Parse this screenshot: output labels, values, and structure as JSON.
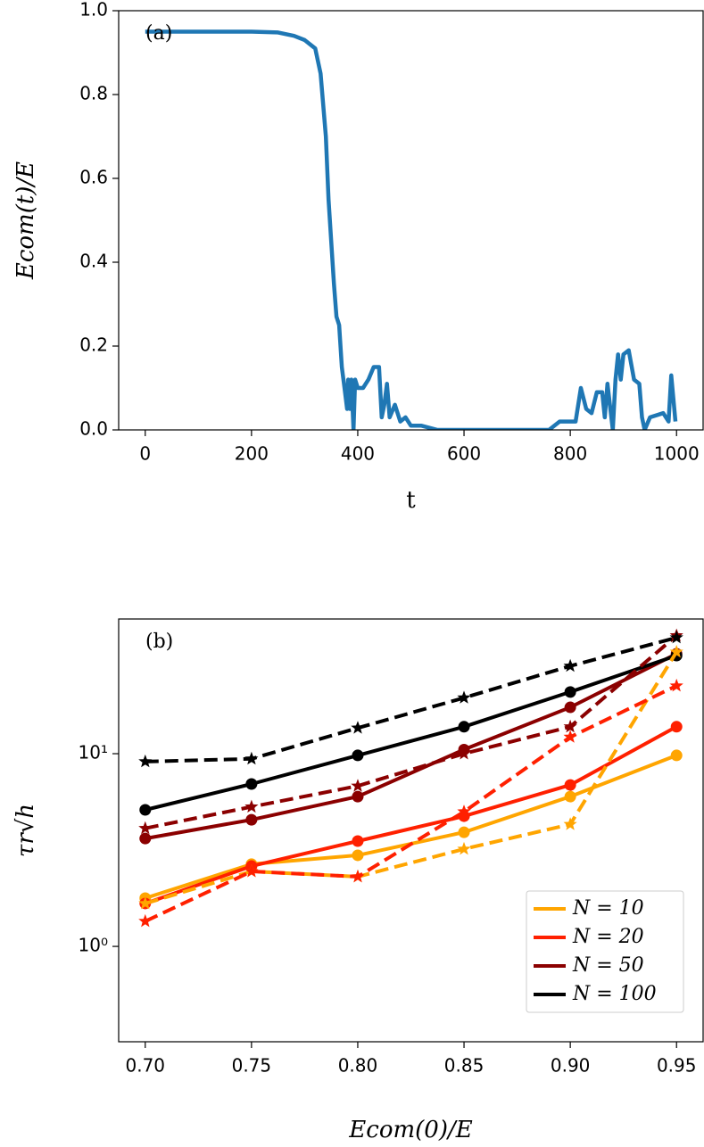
{
  "chart_data": [
    {
      "type": "line",
      "annotation": "(a)",
      "xlabel": "t",
      "ylabel": "Ecom(t)/E",
      "x": [
        0,
        100,
        200,
        250,
        280,
        300,
        320,
        330,
        340,
        345,
        350,
        355,
        360,
        365,
        370,
        375,
        380,
        382,
        385,
        388,
        392,
        395,
        400,
        410,
        420,
        430,
        440,
        445,
        450,
        455,
        460,
        470,
        480,
        490,
        500,
        520,
        550,
        700,
        760,
        780,
        810,
        820,
        830,
        840,
        850,
        860,
        865,
        870,
        880,
        885,
        890,
        895,
        900,
        910,
        920,
        930,
        935,
        940,
        950,
        975,
        985,
        990,
        998
      ],
      "series": [
        {
          "color": "#1f77b4",
          "values": [
            0.95,
            0.95,
            0.95,
            0.948,
            0.94,
            0.93,
            0.91,
            0.85,
            0.7,
            0.55,
            0.45,
            0.35,
            0.27,
            0.25,
            0.15,
            0.1,
            0.05,
            0.12,
            0.05,
            0.12,
            0.0,
            0.12,
            0.1,
            0.1,
            0.12,
            0.15,
            0.15,
            0.03,
            0.06,
            0.11,
            0.03,
            0.06,
            0.02,
            0.03,
            0.01,
            0.01,
            0.0,
            0.0,
            0.0,
            0.02,
            0.02,
            0.1,
            0.05,
            0.04,
            0.09,
            0.09,
            0.03,
            0.11,
            0.0,
            0.12,
            0.18,
            0.12,
            0.18,
            0.19,
            0.12,
            0.11,
            0.03,
            0.0,
            0.03,
            0.04,
            0.02,
            0.13,
            0.02
          ]
        }
      ],
      "xlim": [
        -50,
        1050
      ],
      "xticks": [
        0,
        200,
        400,
        600,
        800,
        1000
      ],
      "ylim": [
        0,
        1
      ],
      "yticks": [
        {
          "value": 0,
          "label": "0.0"
        },
        {
          "value": 0.2,
          "label": "0.2"
        },
        {
          "value": 0.4,
          "label": "0.4"
        },
        {
          "value": 0.6,
          "label": "0.6"
        },
        {
          "value": 0.8,
          "label": "0.8"
        },
        {
          "value": 1,
          "label": "1.0"
        }
      ]
    },
    {
      "type": "line",
      "annotation": "(b)",
      "xlabel": "Ecom(0)/E",
      "ylabel": "τr√h",
      "log_y": true,
      "legend": "lower right",
      "x": [
        0.7,
        0.75,
        0.8,
        0.85,
        0.9,
        0.95
      ],
      "series": [
        {
          "name": "N = 10",
          "color": "#ffa500",
          "marker": "o",
          "linestyle": "solid",
          "values": [
            1.78,
            2.67,
            2.97,
            3.91,
            5.99,
            9.8
          ]
        },
        {
          "name": "N = 20",
          "color": "#ff2000",
          "marker": "o",
          "linestyle": "solid",
          "values": [
            1.67,
            2.61,
            3.52,
            4.74,
            6.88,
            13.8
          ]
        },
        {
          "name": "N = 50",
          "color": "#8b0000",
          "marker": "o",
          "linestyle": "solid",
          "values": [
            3.63,
            4.54,
            5.99,
            10.5,
            17.4,
            33
          ]
        },
        {
          "name": "N = 100",
          "color": "#000000",
          "marker": "o",
          "linestyle": "solid",
          "values": [
            5.11,
            6.96,
            9.8,
            13.8,
            20.9,
            32.3
          ]
        },
        {
          "color": "#ffa500",
          "marker": "*",
          "linestyle": "dashed",
          "values": [
            1.67,
            2.45,
            2.3,
            3.2,
            4.3,
            33.7
          ]
        },
        {
          "color": "#ff2000",
          "marker": "*",
          "linestyle": "dashed",
          "values": [
            1.35,
            2.45,
            2.3,
            5.0,
            12.2,
            22.5
          ]
        },
        {
          "color": "#8b0000",
          "marker": "*",
          "linestyle": "dashed",
          "values": [
            4.1,
            5.3,
            6.8,
            10.0,
            13.8,
            41
          ]
        },
        {
          "color": "#000000",
          "marker": "*",
          "linestyle": "dashed",
          "values": [
            9.1,
            9.4,
            13.6,
            19.5,
            28.5,
            40
          ]
        }
      ],
      "xlim": [
        0.6875,
        0.9625
      ],
      "xticks": [
        {
          "value": 0.7,
          "label": "0.70"
        },
        {
          "value": 0.75,
          "label": "0.75"
        },
        {
          "value": 0.8,
          "label": "0.80"
        },
        {
          "value": 0.85,
          "label": "0.85"
        },
        {
          "value": 0.9,
          "label": "0.90"
        },
        {
          "value": 0.95,
          "label": "0.95"
        }
      ],
      "ylim": [
        0.32,
        50
      ],
      "yticks": [
        {
          "value": 1,
          "label": "10⁰"
        },
        {
          "value": 10,
          "label": "10¹"
        }
      ]
    }
  ]
}
